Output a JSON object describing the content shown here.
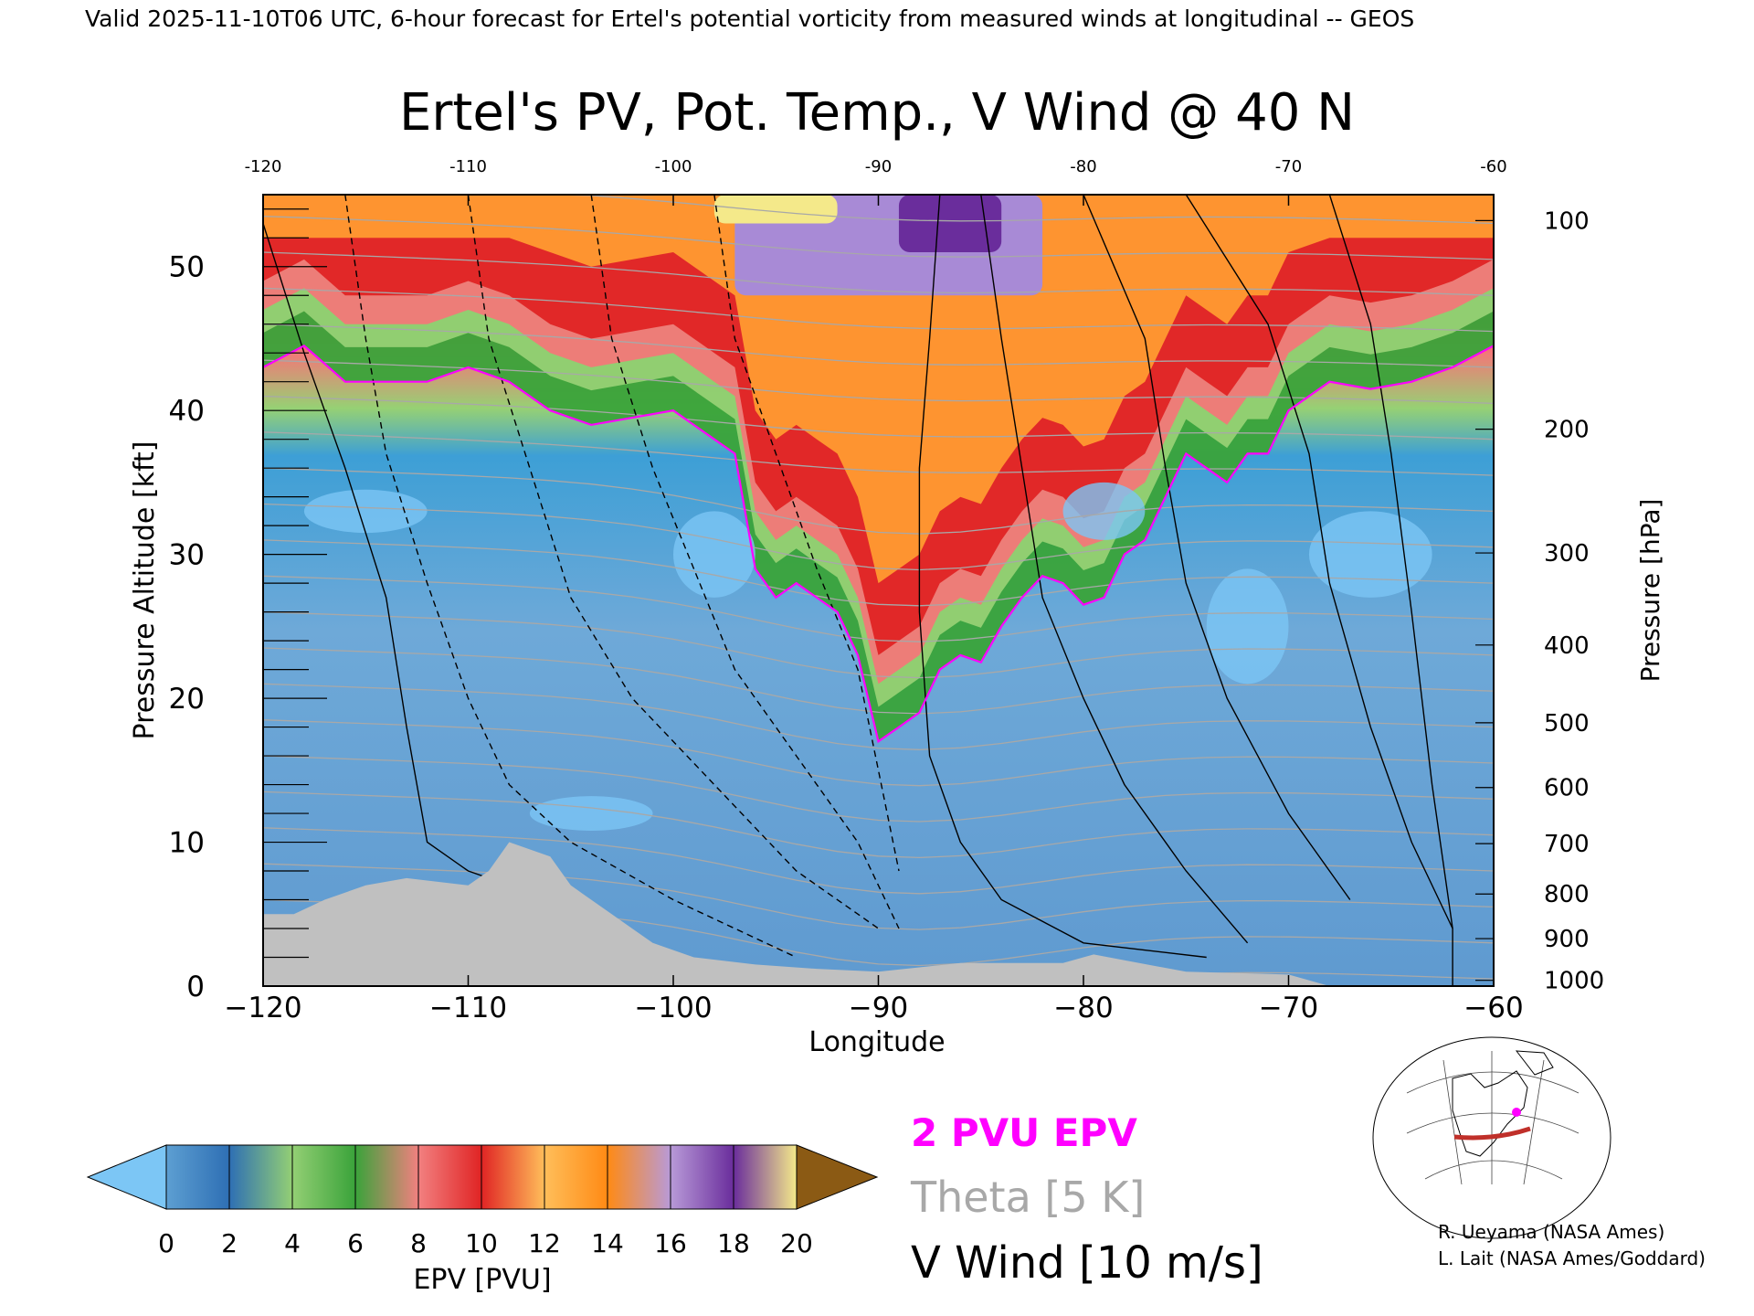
{
  "header_line": "Valid 2025-11-10T06 UTC, 6-hour forecast for Ertel's potential vorticity from measured winds at longitudinal -- GEOS",
  "chart_data": {
    "type": "heatmap",
    "title": "Ertel's PV, Pot. Temp., V Wind @ 40 N",
    "xlabel": "Longitude",
    "ylabel": "Pressure Altitude [kft]",
    "y2label": "Pressure [hPa]",
    "xlim": [
      -120,
      -60
    ],
    "ylim": [
      0,
      55
    ],
    "x_ticks": [
      -120,
      -110,
      -100,
      -90,
      -80,
      -70,
      -60
    ],
    "x_tick_labels": [
      "−120",
      "−110",
      "−100",
      "−90",
      "−80",
      "−70",
      "−60"
    ],
    "top_tick_labels": [
      "-120",
      "-110",
      "-100",
      "-90",
      "-80",
      "-70",
      "-60"
    ],
    "y_ticks": [
      0,
      10,
      20,
      30,
      40,
      50
    ],
    "pressure_ticks": [
      {
        "label": "100",
        "kft": 53.2
      },
      {
        "label": "200",
        "kft": 38.7
      },
      {
        "label": "300",
        "kft": 30.1
      },
      {
        "label": "400",
        "kft": 23.7
      },
      {
        "label": "500",
        "kft": 18.3
      },
      {
        "label": "600",
        "kft": 13.8
      },
      {
        "label": "700",
        "kft": 9.9
      },
      {
        "label": "800",
        "kft": 6.4
      },
      {
        "label": "900",
        "kft": 3.3
      },
      {
        "label": "1000",
        "kft": 0.4
      }
    ],
    "tropopause_2pvu": {
      "name": "2 PVU EPV",
      "x": [
        -120,
        -118,
        -116,
        -114,
        -112,
        -110,
        -108,
        -106,
        -104,
        -102,
        -100,
        -98,
        -97,
        -96,
        -95,
        -94,
        -93,
        -92,
        -91,
        -90,
        -89,
        -88,
        -87,
        -86,
        -85,
        -84,
        -83,
        -82,
        -81,
        -80,
        -79,
        -78,
        -77,
        -76,
        -75,
        -74,
        -73,
        -72,
        -71,
        -70,
        -68,
        -66,
        -64,
        -62,
        -60
      ],
      "y": [
        43,
        44.5,
        42,
        42,
        42,
        43,
        42,
        40,
        39,
        39.5,
        40,
        38,
        37,
        29,
        27,
        28,
        27,
        26,
        23,
        17,
        18,
        19,
        22,
        23,
        22.5,
        25,
        27,
        28.5,
        28,
        26.5,
        27,
        30,
        31,
        34,
        37,
        36,
        35,
        37,
        37,
        40,
        42,
        41.5,
        42,
        43,
        44.5
      ]
    },
    "epv_colorbar": {
      "label": "EPV [PVU]",
      "ticks": [
        0,
        2,
        4,
        6,
        8,
        10,
        12,
        14,
        16,
        18,
        20
      ],
      "colors": [
        "#5d9fd2",
        "#2e6fb4",
        "#93cf74",
        "#3aa33a",
        "#f28080",
        "#e02424",
        "#ffbe5a",
        "#ff8a14",
        "#b89ad8",
        "#6a2d9c",
        "#f4e98a",
        "#8b5a14"
      ],
      "under_color": "#7cc6f5",
      "over_color": "#8b5a14"
    },
    "legend": [
      {
        "label": "2 PVU EPV",
        "color": "#ff00ff"
      },
      {
        "label": "Theta [5 K]",
        "color": "#a8a8a8"
      },
      {
        "label": "V Wind [10 m/s]",
        "color": "#000000"
      }
    ],
    "terrain_color": "#c0c0c0",
    "theta_line_color": "#a8a8a8"
  },
  "credits": [
    "R. Ueyama (NASA Ames)",
    "L. Lait (NASA Ames/Goddard)"
  ]
}
